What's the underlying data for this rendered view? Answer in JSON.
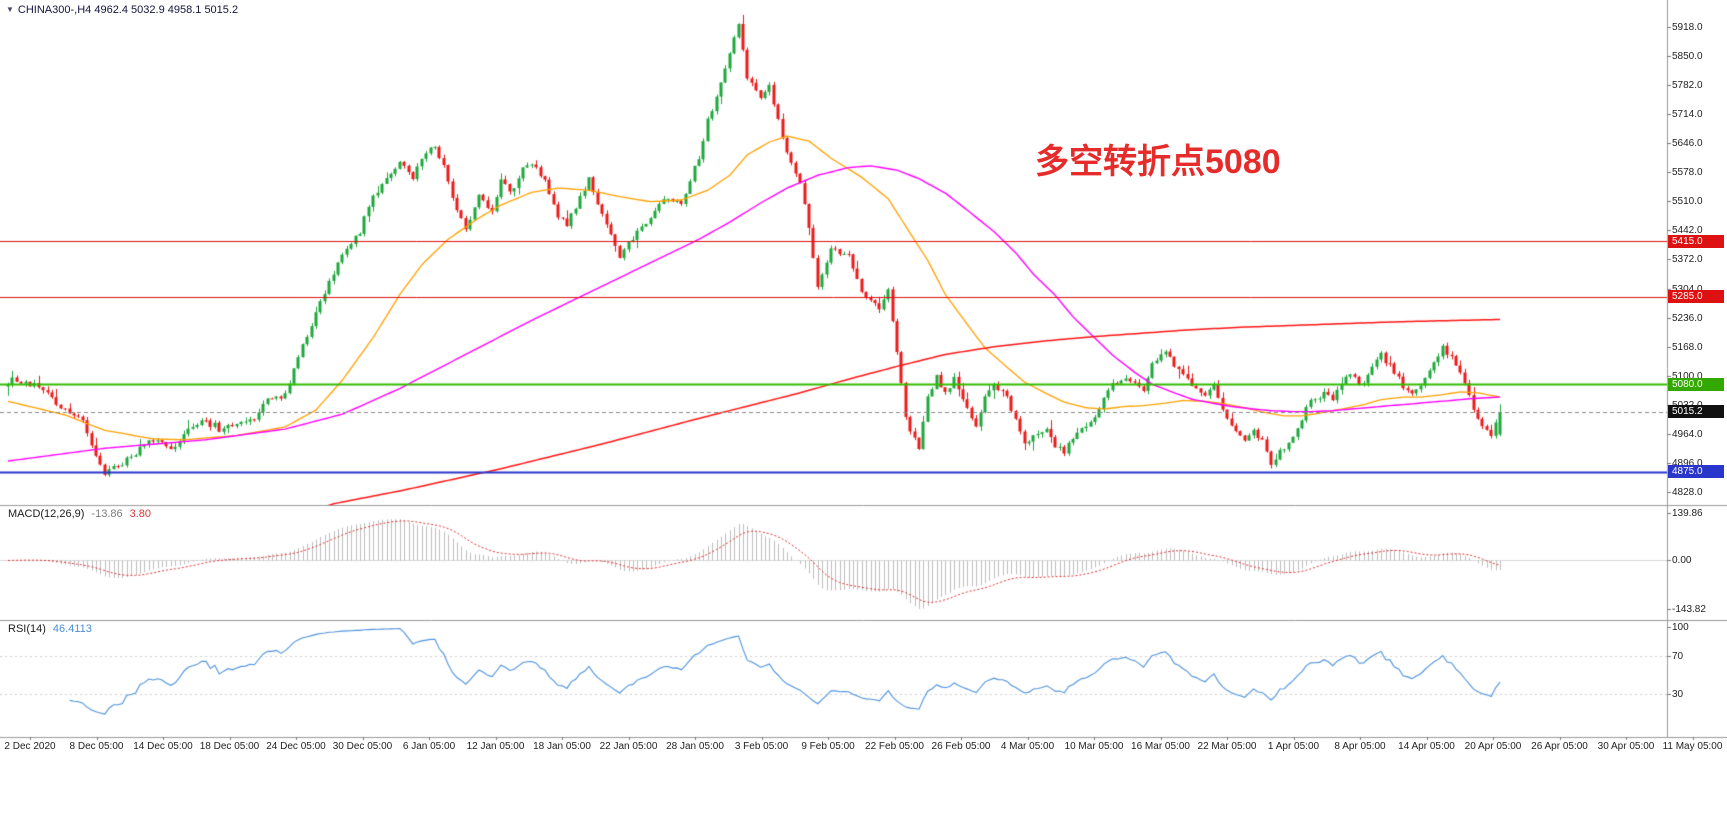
{
  "header": {
    "dropdown_icon": "▼",
    "symbol_line": "CHINA300-,H4  4962.4 5032.9 4958.1 5015.2"
  },
  "annotation": {
    "text": "多空转折点5080",
    "color": "#e62b2b"
  },
  "chart_data": [
    {
      "type": "candlestick",
      "symbol": "CHINA300-",
      "timeframe": "H4",
      "ohlc_last": {
        "open": 4962.4,
        "high": 5032.9,
        "low": 4958.1,
        "close": 5015.2
      },
      "bars": 340,
      "up_color": "#1fa73d",
      "down_color": "#e81b1b",
      "price_axis": {
        "labels": [
          "5918.0",
          "5850.0",
          "5782.0",
          "5714.0",
          "5646.0",
          "5578.0",
          "5510.0",
          "5442.0",
          "5372.0",
          "5304.0",
          "5236.0",
          "5168.0",
          "5100.0",
          "5032.0",
          "4964.0",
          "4896.0",
          "4828.0"
        ],
        "range": [
          4797,
          5934
        ]
      },
      "x_axis_labels": [
        "2 Dec 2020",
        "8 Dec 05:00",
        "14 Dec 05:00",
        "18 Dec 05:00",
        "24 Dec 05:00",
        "30 Dec 05:00",
        "6 Jan 05:00",
        "12 Jan 05:00",
        "18 Jan 05:00",
        "22 Jan 05:00",
        "28 Jan 05:00",
        "3 Feb 05:00",
        "9 Feb 05:00",
        "22 Feb 05:00",
        "26 Feb 05:00",
        "4 Mar 05:00",
        "10 Mar 05:00",
        "16 Mar 05:00",
        "22 Mar 05:00",
        "1 Apr 05:00",
        "8 Apr 05:00",
        "14 Apr 05:00",
        "20 Apr 05:00",
        "26 Apr 05:00",
        "30 Apr 05:00",
        "11 May 05:00"
      ],
      "levels": [
        {
          "price": 5415.0,
          "badge": "5415.0",
          "color": "#dd1111",
          "style": "solid",
          "width": 1,
          "badge_bg": "#dd1111"
        },
        {
          "price": 5285.0,
          "badge": "5285.0",
          "color": "#dd1111",
          "style": "solid",
          "width": 1,
          "badge_bg": "#dd1111"
        },
        {
          "price": 5080.0,
          "badge": "5080.0",
          "color": "#33bb00",
          "style": "solid",
          "width": 2,
          "badge_bg": "#33a800"
        },
        {
          "price": 4875.0,
          "badge": "4875.0",
          "color": "#2a35cc",
          "style": "solid",
          "width": 2,
          "badge_bg": "#2a35cc"
        },
        {
          "price": 5015.2,
          "badge": "5015.2",
          "color": "#8a8a8a",
          "style": "dashed",
          "width": 1,
          "badge_bg": "#111111"
        }
      ],
      "close_path_anchors": [
        [
          0,
          5090
        ],
        [
          7,
          5078
        ],
        [
          13,
          5020
        ],
        [
          17,
          4990
        ],
        [
          22,
          4870
        ],
        [
          27,
          4905
        ],
        [
          33,
          4950
        ],
        [
          37,
          4922
        ],
        [
          40,
          4960
        ],
        [
          45,
          5000
        ],
        [
          48,
          4972
        ],
        [
          52,
          4982
        ],
        [
          56,
          5002
        ],
        [
          59,
          5040
        ],
        [
          63,
          5052
        ],
        [
          66,
          5150
        ],
        [
          70,
          5250
        ],
        [
          73,
          5320
        ],
        [
          76,
          5380
        ],
        [
          80,
          5440
        ],
        [
          83,
          5520
        ],
        [
          86,
          5560
        ],
        [
          89,
          5600
        ],
        [
          92,
          5560
        ],
        [
          94,
          5610
        ],
        [
          97,
          5640
        ],
        [
          100,
          5560
        ],
        [
          102,
          5480
        ],
        [
          104,
          5442
        ],
        [
          107,
          5520
        ],
        [
          110,
          5482
        ],
        [
          112,
          5560
        ],
        [
          114,
          5530
        ],
        [
          117,
          5580
        ],
        [
          119,
          5598
        ],
        [
          122,
          5550
        ],
        [
          125,
          5480
        ],
        [
          127,
          5452
        ],
        [
          130,
          5520
        ],
        [
          132,
          5560
        ],
        [
          135,
          5480
        ],
        [
          137,
          5432
        ],
        [
          139,
          5378
        ],
        [
          143,
          5440
        ],
        [
          146,
          5470
        ],
        [
          149,
          5520
        ],
        [
          153,
          5500
        ],
        [
          155,
          5560
        ],
        [
          157,
          5612
        ],
        [
          159,
          5700
        ],
        [
          162,
          5780
        ],
        [
          164,
          5850
        ],
        [
          166,
          5928
        ],
        [
          168,
          5800
        ],
        [
          171,
          5752
        ],
        [
          173,
          5780
        ],
        [
          175,
          5700
        ],
        [
          177,
          5620
        ],
        [
          180,
          5550
        ],
        [
          182,
          5450
        ],
        [
          184,
          5302
        ],
        [
          187,
          5402
        ],
        [
          191,
          5380
        ],
        [
          194,
          5300
        ],
        [
          198,
          5252
        ],
        [
          200,
          5300
        ],
        [
          202,
          5150
        ],
        [
          204,
          5000
        ],
        [
          207,
          4928
        ],
        [
          209,
          5050
        ],
        [
          211,
          5098
        ],
        [
          213,
          5060
        ],
        [
          215,
          5098
        ],
        [
          218,
          5020
        ],
        [
          220,
          4980
        ],
        [
          222,
          5048
        ],
        [
          224,
          5080
        ],
        [
          227,
          5058
        ],
        [
          229,
          4990
        ],
        [
          231,
          4942
        ],
        [
          233,
          4962
        ],
        [
          236,
          4980
        ],
        [
          238,
          4938
        ],
        [
          240,
          4915
        ],
        [
          242,
          4950
        ],
        [
          245,
          4980
        ],
        [
          247,
          5002
        ],
        [
          249,
          5050
        ],
        [
          251,
          5080
        ],
        [
          254,
          5100
        ],
        [
          256,
          5078
        ],
        [
          258,
          5060
        ],
        [
          260,
          5120
        ],
        [
          263,
          5160
        ],
        [
          265,
          5120
        ],
        [
          267,
          5100
        ],
        [
          269,
          5078
        ],
        [
          272,
          5050
        ],
        [
          274,
          5078
        ],
        [
          276,
          5020
        ],
        [
          278,
          4980
        ],
        [
          281,
          4950
        ],
        [
          283,
          4972
        ],
        [
          285,
          4950
        ],
        [
          287,
          4895
        ],
        [
          290,
          4930
        ],
        [
          292,
          4962
        ],
        [
          294,
          5000
        ],
        [
          296,
          5040
        ],
        [
          299,
          5060
        ],
        [
          301,
          5050
        ],
        [
          303,
          5080
        ],
        [
          305,
          5100
        ],
        [
          308,
          5082
        ],
        [
          310,
          5120
        ],
        [
          312,
          5150
        ],
        [
          314,
          5120
        ],
        [
          317,
          5080
        ],
        [
          319,
          5050
        ],
        [
          321,
          5080
        ],
        [
          323,
          5120
        ],
        [
          326,
          5160
        ],
        [
          328,
          5140
        ],
        [
          330,
          5100
        ],
        [
          332,
          5060
        ],
        [
          334,
          5000
        ],
        [
          337,
          4958
        ],
        [
          339,
          5015.2
        ]
      ],
      "moving_averages": [
        {
          "name": "ma-fast-orange",
          "color": "#ffa000",
          "width": 1.3,
          "anchors": [
            [
              0,
              5040
            ],
            [
              13,
              5008
            ],
            [
              22,
              4972
            ],
            [
              33,
              4952
            ],
            [
              40,
              4950
            ],
            [
              52,
              4960
            ],
            [
              63,
              4980
            ],
            [
              70,
              5020
            ],
            [
              76,
              5090
            ],
            [
              83,
              5190
            ],
            [
              89,
              5290
            ],
            [
              94,
              5360
            ],
            [
              100,
              5420
            ],
            [
              107,
              5470
            ],
            [
              112,
              5500
            ],
            [
              119,
              5530
            ],
            [
              125,
              5540
            ],
            [
              132,
              5535
            ],
            [
              139,
              5520
            ],
            [
              146,
              5508
            ],
            [
              153,
              5512
            ],
            [
              159,
              5535
            ],
            [
              164,
              5570
            ],
            [
              168,
              5618
            ],
            [
              173,
              5648
            ],
            [
              177,
              5662
            ],
            [
              182,
              5650
            ],
            [
              187,
              5610
            ],
            [
              194,
              5565
            ],
            [
              200,
              5515
            ],
            [
              204,
              5450
            ],
            [
              209,
              5370
            ],
            [
              213,
              5290
            ],
            [
              218,
              5220
            ],
            [
              222,
              5165
            ],
            [
              227,
              5120
            ],
            [
              231,
              5085
            ],
            [
              236,
              5058
            ],
            [
              240,
              5038
            ],
            [
              245,
              5025
            ],
            [
              249,
              5022
            ],
            [
              254,
              5028
            ],
            [
              258,
              5030
            ],
            [
              263,
              5036
            ],
            [
              267,
              5042
            ],
            [
              272,
              5040
            ],
            [
              276,
              5035
            ],
            [
              281,
              5025
            ],
            [
              285,
              5015
            ],
            [
              290,
              5006
            ],
            [
              294,
              5006
            ],
            [
              299,
              5014
            ],
            [
              303,
              5022
            ],
            [
              308,
              5032
            ],
            [
              312,
              5044
            ],
            [
              317,
              5050
            ],
            [
              321,
              5050
            ],
            [
              326,
              5056
            ],
            [
              330,
              5062
            ],
            [
              334,
              5060
            ],
            [
              339,
              5050
            ]
          ]
        },
        {
          "name": "ma-mid-magenta",
          "color": "#ff00ff",
          "width": 1.4,
          "anchors": [
            [
              0,
              4900
            ],
            [
              22,
              4930
            ],
            [
              45,
              4950
            ],
            [
              63,
              4975
            ],
            [
              76,
              5010
            ],
            [
              89,
              5070
            ],
            [
              104,
              5150
            ],
            [
              119,
              5230
            ],
            [
              135,
              5310
            ],
            [
              149,
              5380
            ],
            [
              157,
              5420
            ],
            [
              164,
              5460
            ],
            [
              171,
              5505
            ],
            [
              177,
              5540
            ],
            [
              184,
              5570
            ],
            [
              191,
              5588
            ],
            [
              196,
              5592
            ],
            [
              202,
              5582
            ],
            [
              207,
              5562
            ],
            [
              213,
              5528
            ],
            [
              218,
              5488
            ],
            [
              224,
              5438
            ],
            [
              229,
              5388
            ],
            [
              233,
              5338
            ],
            [
              238,
              5288
            ],
            [
              242,
              5238
            ],
            [
              247,
              5188
            ],
            [
              251,
              5148
            ],
            [
              256,
              5108
            ],
            [
              260,
              5080
            ],
            [
              265,
              5060
            ],
            [
              269,
              5045
            ],
            [
              274,
              5035
            ],
            [
              278,
              5028
            ],
            [
              283,
              5022
            ],
            [
              287,
              5018
            ],
            [
              292,
              5016
            ],
            [
              296,
              5016
            ],
            [
              301,
              5018
            ],
            [
              305,
              5022
            ],
            [
              310,
              5026
            ],
            [
              314,
              5030
            ],
            [
              319,
              5034
            ],
            [
              323,
              5038
            ],
            [
              328,
              5042
            ],
            [
              332,
              5046
            ],
            [
              339,
              5050
            ]
          ]
        },
        {
          "name": "ma-slow-red",
          "color": "#ff1515",
          "width": 1.5,
          "anchors": [
            [
              0,
              4620
            ],
            [
              45,
              4705
            ],
            [
              74,
              4800
            ],
            [
              90,
              4832
            ],
            [
              112,
              4882
            ],
            [
              135,
              4940
            ],
            [
              157,
              5000
            ],
            [
              180,
              5060
            ],
            [
              191,
              5092
            ],
            [
              202,
              5122
            ],
            [
              213,
              5150
            ],
            [
              224,
              5168
            ],
            [
              236,
              5182
            ],
            [
              247,
              5192
            ],
            [
              258,
              5200
            ],
            [
              269,
              5208
            ],
            [
              281,
              5214
            ],
            [
              292,
              5218
            ],
            [
              303,
              5222
            ],
            [
              314,
              5226
            ],
            [
              326,
              5229
            ],
            [
              339,
              5232
            ]
          ]
        }
      ]
    },
    {
      "type": "macd-histogram",
      "label": "MACD(12,26,9)",
      "values_text": [
        "-13.86",
        "3.80"
      ],
      "params": [
        12,
        26,
        9
      ],
      "last_values": {
        "macd": -13.86,
        "signal": 3.8
      },
      "axis_labels": [
        "139.86",
        "0.00",
        "-143.82"
      ],
      "axis_values": [
        139.86,
        0,
        -143.82
      ],
      "range": [
        -165,
        150
      ],
      "histogram_color": "#bdbdbd",
      "signal_color": "#e03030",
      "signal_style": "dotted"
    },
    {
      "type": "line",
      "label": "RSI(14)",
      "value_text": "46.4113",
      "period": 14,
      "last_value": 46.4113,
      "axis_labels": [
        "100",
        "70",
        "30"
      ],
      "axis_values": [
        100,
        70,
        30
      ],
      "range": [
        0,
        100
      ],
      "line_color": "#4f92dd",
      "level_lines": [
        70,
        30
      ]
    }
  ]
}
